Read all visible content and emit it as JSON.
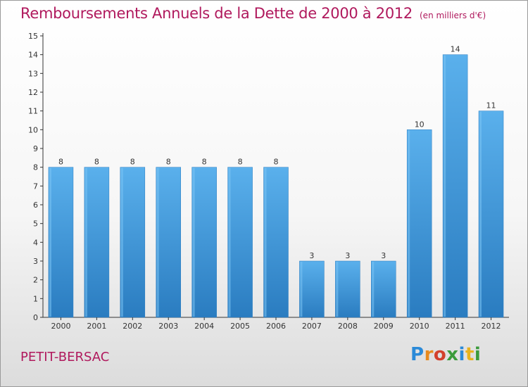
{
  "title": "Remboursements Annuels de la Dette de 2000 à 2012",
  "subtitle": "(en milliers d'€)",
  "commune": "PETIT-BERSAC",
  "logo_text": "Proxiti",
  "colors": {
    "bar": "#3d96d8",
    "bar_light": "#5ab0ec",
    "bar_dark": "#2a7cc0",
    "title": "#b0195d",
    "axis": "#333333"
  },
  "chart_data": {
    "type": "bar",
    "title": "Remboursements Annuels de la Dette de 2000 à 2012",
    "subtitle": "(en milliers d'€)",
    "xlabel": "",
    "ylabel": "",
    "categories": [
      "2000",
      "2001",
      "2002",
      "2003",
      "2004",
      "2005",
      "2006",
      "2007",
      "2008",
      "2009",
      "2010",
      "2011",
      "2012"
    ],
    "values": [
      8,
      8,
      8,
      8,
      8,
      8,
      8,
      3,
      3,
      3,
      10,
      14,
      11
    ],
    "ylim": [
      0,
      15
    ],
    "yticks": [
      0,
      1,
      2,
      3,
      4,
      5,
      6,
      7,
      8,
      9,
      10,
      11,
      12,
      13,
      14,
      15
    ],
    "data_labels": true,
    "grid": false
  }
}
